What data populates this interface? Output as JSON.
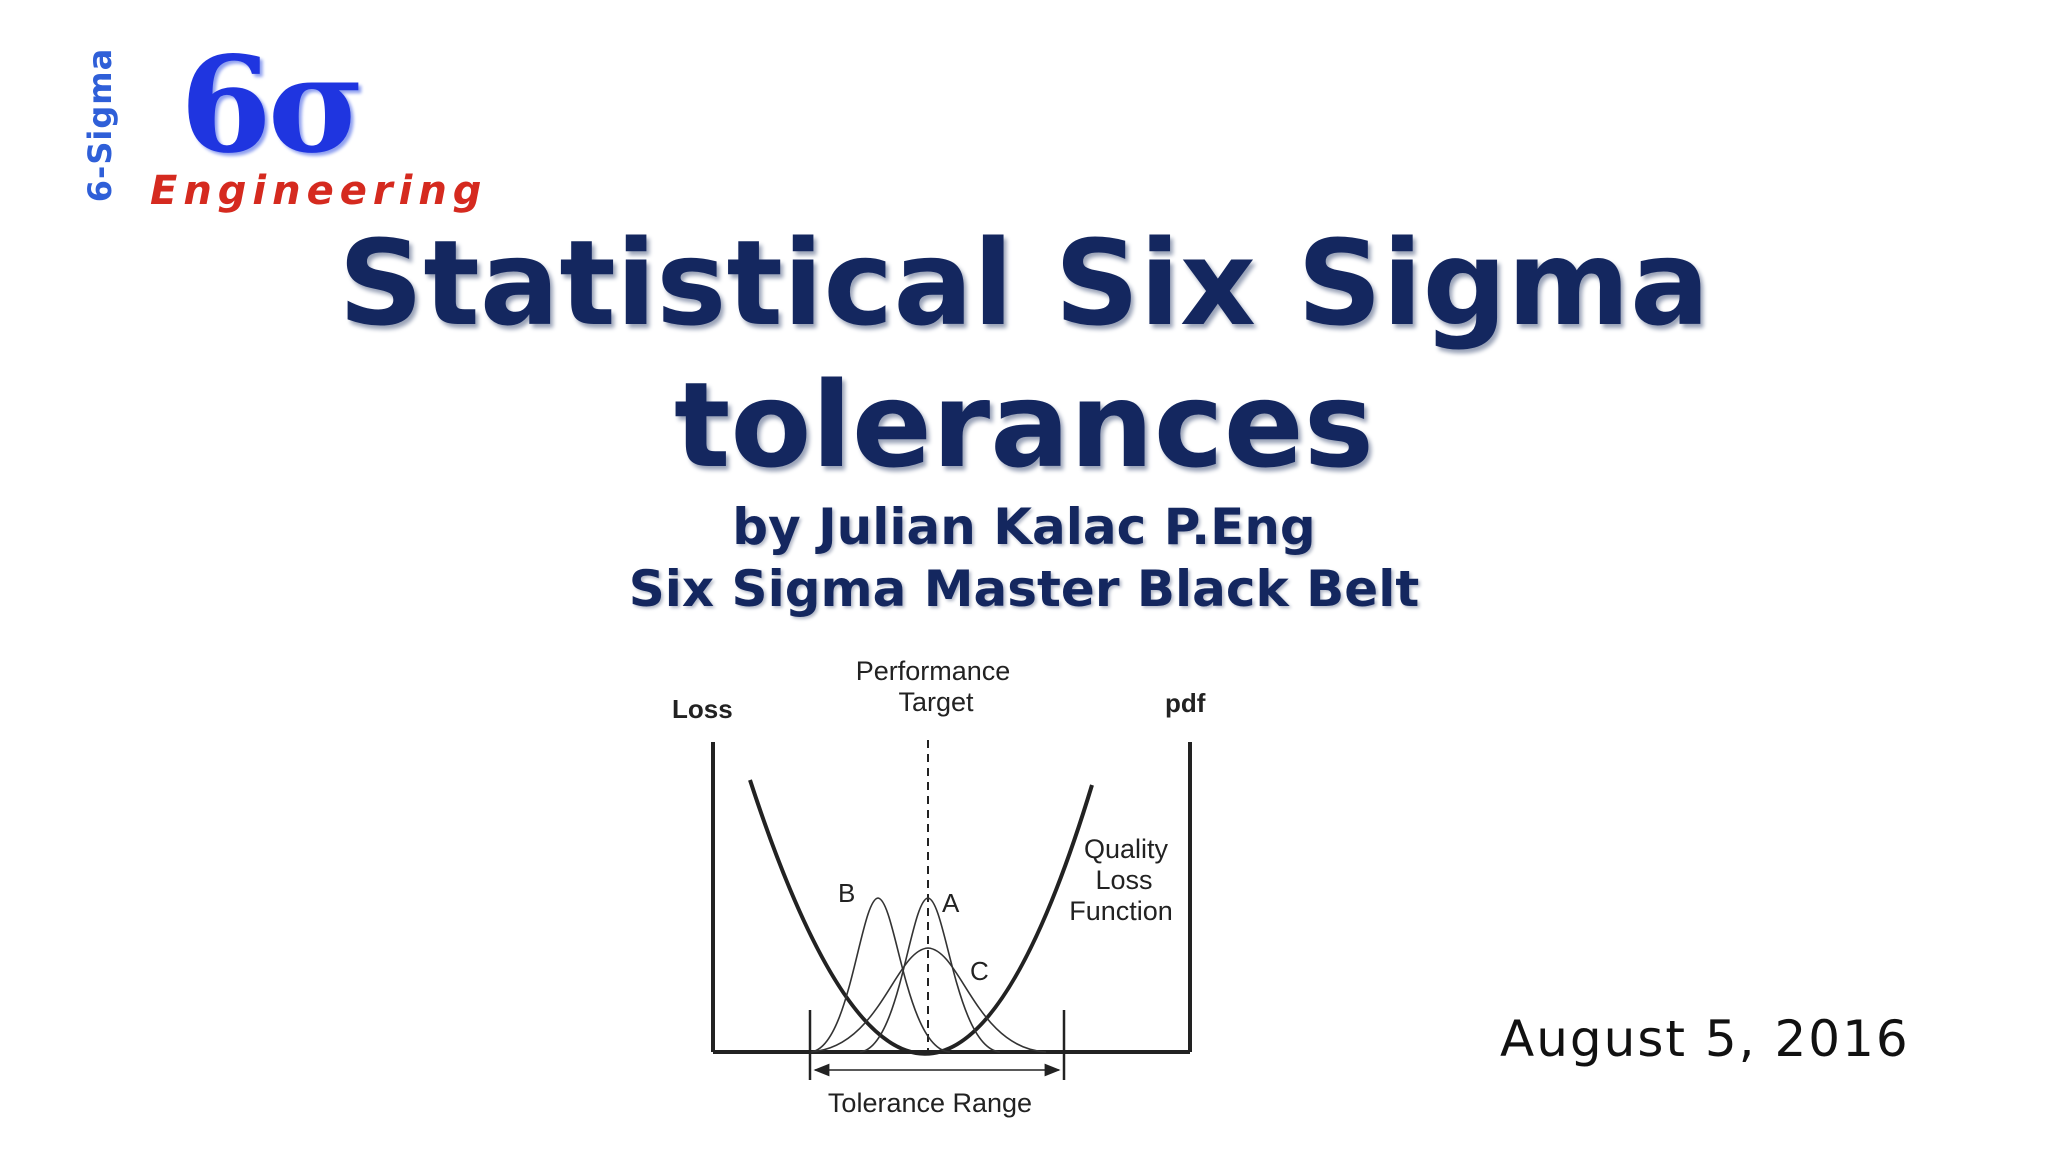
{
  "logo": {
    "vertical_text": "6-Sigma",
    "symbol": "6σ",
    "word": "Engineering",
    "colors": {
      "symbol": "#1f35e0",
      "word": "#d52a1f",
      "vertical": "#2f5fd8"
    }
  },
  "title": {
    "line1": "Statistical Six Sigma",
    "line2": "tolerances",
    "color": "#14275f"
  },
  "subtitle": {
    "line1": "by Julian Kalac P.Eng",
    "line2": "Six Sigma Master Black Belt"
  },
  "date": "August 5, 2016",
  "diagram": {
    "left_axis_label": "Loss",
    "right_axis_label": "pdf",
    "target_label_line1": "Performance",
    "target_label_line2": "Target",
    "curve_label_line1": "Quality",
    "curve_label_line2": "Loss",
    "curve_label_line3": "Function",
    "distribution_b": "B",
    "distribution_a": "A",
    "distribution_c": "C",
    "tolerance_label": "Tolerance Range"
  }
}
